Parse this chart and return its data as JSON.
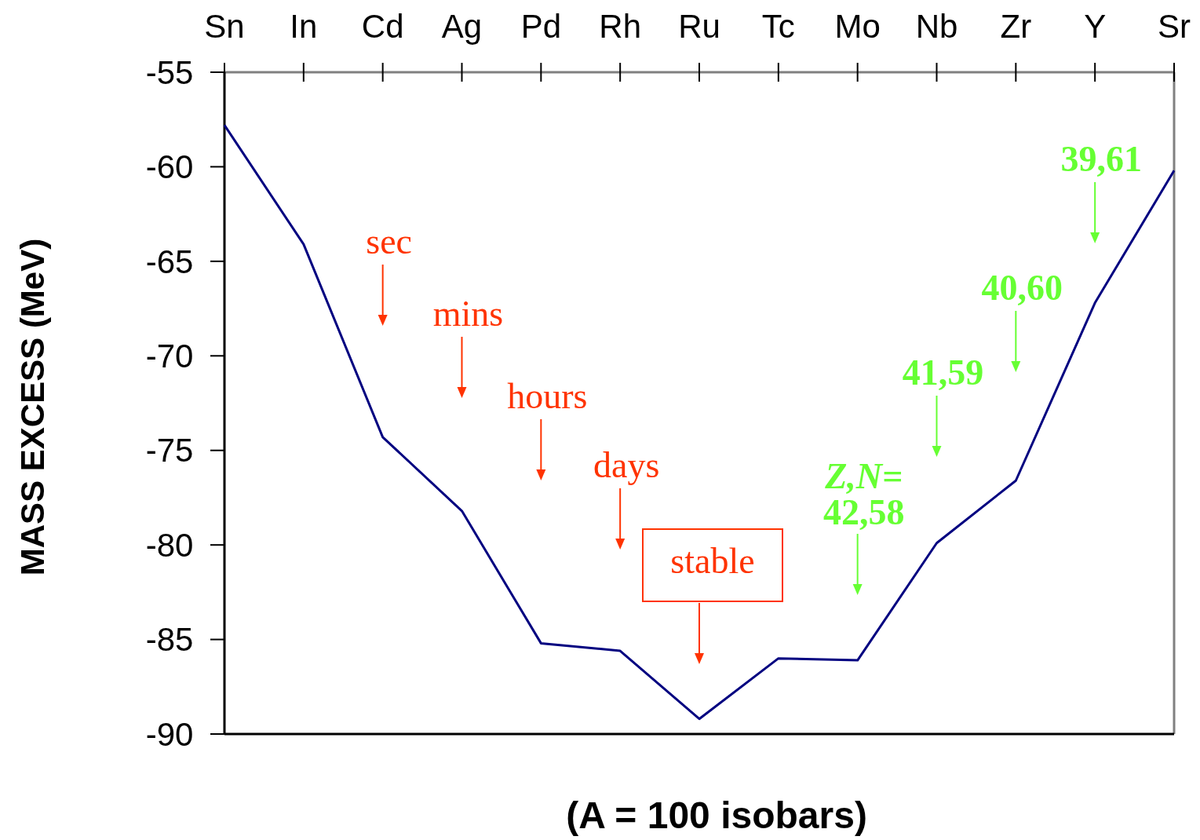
{
  "chart_data": {
    "type": "line",
    "xlabel": "(A = 100 isobars)",
    "ylabel": "MASS EXCESS (MeV)",
    "categories": [
      "Sn",
      "In",
      "Cd",
      "Ag",
      "Pd",
      "Rh",
      "Ru",
      "Tc",
      "Mo",
      "Nb",
      "Zr",
      "Y",
      "Sr"
    ],
    "series": [
      {
        "color": "#000080",
        "values": [
          -57.8,
          -64.1,
          -74.3,
          -78.2,
          -85.2,
          -85.6,
          -89.2,
          -86.0,
          -86.1,
          -79.9,
          -76.6,
          -67.2,
          -60.2
        ]
      }
    ],
    "ylim": [
      -90,
      -55
    ],
    "yticks": [
      -55,
      -60,
      -65,
      -70,
      -75,
      -80,
      -85,
      -90
    ],
    "grid": false,
    "marker": "none",
    "line_style": "solid",
    "annotations": [
      "sec",
      "mins",
      "hours",
      "days",
      "stable",
      "Z,N=\n42,58",
      "41,59",
      "40,60",
      "39,61"
    ]
  }
}
